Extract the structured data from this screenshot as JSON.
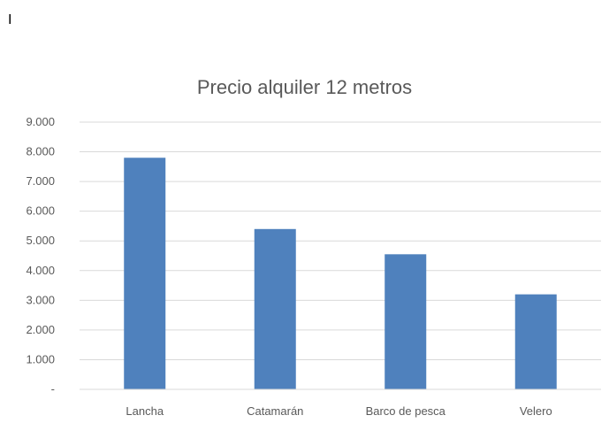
{
  "cursor_text": "I",
  "chart_data": {
    "type": "bar",
    "title": "Precio alquiler 12 metros",
    "categories": [
      "Lancha",
      "Catamarán",
      "Barco de pesca",
      "Velero"
    ],
    "values": [
      7800,
      5400,
      4550,
      3200
    ],
    "ylim": [
      0,
      9000
    ],
    "yticks": [
      0,
      1000,
      2000,
      3000,
      4000,
      5000,
      6000,
      7000,
      8000,
      9000
    ],
    "ytick_labels": [
      "-",
      "1.000",
      "2.000",
      "3.000",
      "4.000",
      "5.000",
      "6.000",
      "7.000",
      "8.000",
      "9.000"
    ],
    "xlabel": "",
    "ylabel": "",
    "grid": true,
    "legend": "none",
    "bar_color": "#4F81BD",
    "grid_color": "#D9D9D9"
  }
}
